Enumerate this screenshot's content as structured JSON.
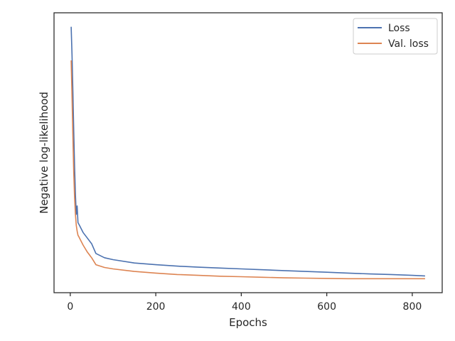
{
  "chart_data": {
    "type": "line",
    "title": "",
    "xlabel": "Epochs",
    "ylabel": "Negative log-likelihood",
    "xlim": [
      -38,
      870
    ],
    "ylim": [
      0,
      100
    ],
    "x_ticks": [
      0,
      200,
      400,
      600,
      800
    ],
    "y_ticks_shown": false,
    "grid": false,
    "legend_position": "top-right",
    "series": [
      {
        "name": "Loss",
        "color": "#4c72b0",
        "x": [
          2,
          4,
          6,
          8,
          10,
          12,
          14,
          16,
          18,
          20,
          25,
          30,
          40,
          50,
          60,
          80,
          100,
          150,
          200,
          250,
          300,
          350,
          400,
          450,
          500,
          550,
          600,
          650,
          700,
          750,
          800,
          830
        ],
        "y": [
          95.0,
          85.0,
          72.0,
          58.0,
          45.0,
          35.0,
          28.0,
          31.0,
          25.0,
          24.5,
          23.0,
          21.5,
          19.5,
          17.5,
          14.0,
          12.5,
          11.8,
          10.6,
          10.0,
          9.5,
          9.1,
          8.8,
          8.5,
          8.2,
          7.9,
          7.6,
          7.3,
          7.0,
          6.7,
          6.5,
          6.2,
          6.0
        ]
      },
      {
        "name": "Val. loss",
        "color": "#dd8452",
        "x": [
          2,
          4,
          6,
          8,
          10,
          12,
          14,
          16,
          18,
          20,
          25,
          30,
          40,
          50,
          60,
          80,
          100,
          150,
          200,
          250,
          300,
          350,
          400,
          450,
          500,
          550,
          600,
          650,
          700,
          750,
          800,
          830
        ],
        "y": [
          83.0,
          70.0,
          56.0,
          43.0,
          34.0,
          28.0,
          24.0,
          22.0,
          20.5,
          20.0,
          18.5,
          17.0,
          14.5,
          12.5,
          10.0,
          9.0,
          8.5,
          7.6,
          7.0,
          6.5,
          6.2,
          5.9,
          5.7,
          5.5,
          5.3,
          5.2,
          5.1,
          5.0,
          5.0,
          5.0,
          5.0,
          5.0
        ]
      }
    ]
  }
}
